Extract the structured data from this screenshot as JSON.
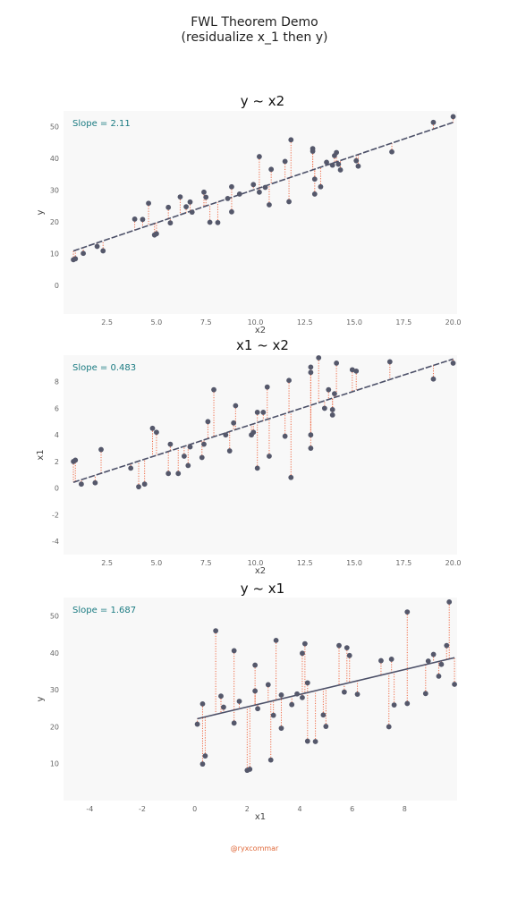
{
  "figure": {
    "title_line1": "FWL Theorem Demo",
    "title_line2": "(residualize x_1 then y)",
    "watermark": "@ryxcommar"
  },
  "colors": {
    "point": "#55586b",
    "fit_line": "#4c5068",
    "residual": "#ef6a45",
    "plot_bg": "#f8f8f8",
    "slope_text": "#1b7b82"
  },
  "chart_data": [
    {
      "type": "scatter",
      "title": "y ~ x2",
      "xlabel": "x2",
      "ylabel": "y",
      "annotation": "Slope = 2.11",
      "xlim": [
        0.3,
        20.2
      ],
      "ylim": [
        -9,
        55
      ],
      "xticks": [
        2.5,
        5.0,
        7.5,
        10.0,
        12.5,
        15.0,
        17.5,
        20.0
      ],
      "xtick_labels": [
        "2.5",
        "5.0",
        "7.5",
        "10.0",
        "12.5",
        "15.0",
        "17.5",
        "20.0"
      ],
      "yticks": [
        0,
        10,
        20,
        30,
        40,
        50
      ],
      "ytick_labels": [
        "0",
        "10",
        "20",
        "30",
        "40",
        "50"
      ],
      "fit": {
        "slope": 2.11,
        "intercept": 9.2
      },
      "grid": false,
      "points": [
        [
          0.8,
          8.1
        ],
        [
          0.9,
          8.4
        ],
        [
          1.3,
          10.1
        ],
        [
          2.0,
          12.3
        ],
        [
          2.3,
          10.9
        ],
        [
          3.9,
          20.9
        ],
        [
          4.3,
          20.8
        ],
        [
          4.6,
          25.9
        ],
        [
          4.9,
          15.9
        ],
        [
          5.0,
          16.3
        ],
        [
          5.6,
          24.6
        ],
        [
          5.7,
          19.7
        ],
        [
          6.2,
          27.9
        ],
        [
          6.5,
          24.8
        ],
        [
          6.7,
          26.3
        ],
        [
          6.8,
          23.1
        ],
        [
          7.4,
          29.4
        ],
        [
          7.5,
          27.8
        ],
        [
          7.7,
          19.9
        ],
        [
          8.1,
          19.8
        ],
        [
          8.6,
          27.4
        ],
        [
          8.8,
          31.1
        ],
        [
          8.8,
          23.2
        ],
        [
          9.2,
          28.8
        ],
        [
          9.9,
          31.8
        ],
        [
          10.2,
          29.4
        ],
        [
          10.2,
          40.6
        ],
        [
          10.5,
          30.9
        ],
        [
          10.7,
          25.4
        ],
        [
          10.8,
          36.6
        ],
        [
          11.5,
          39.1
        ],
        [
          11.7,
          26.4
        ],
        [
          11.8,
          45.9
        ],
        [
          12.9,
          43.1
        ],
        [
          12.9,
          42.3
        ],
        [
          13.0,
          33.5
        ],
        [
          13.0,
          28.8
        ],
        [
          13.3,
          31.1
        ],
        [
          13.6,
          38.8
        ],
        [
          13.9,
          37.9
        ],
        [
          14.0,
          40.9
        ],
        [
          14.1,
          41.9
        ],
        [
          14.2,
          38.2
        ],
        [
          14.3,
          36.4
        ],
        [
          15.1,
          39.3
        ],
        [
          15.2,
          37.6
        ],
        [
          16.9,
          42.1
        ],
        [
          19.0,
          51.4
        ],
        [
          20.0,
          53.2
        ]
      ]
    },
    {
      "type": "scatter",
      "title": "x1 ~ x2",
      "xlabel": "x2",
      "ylabel": "x1",
      "annotation": "Slope = 0.483",
      "xlim": [
        0.3,
        20.2
      ],
      "ylim": [
        -5,
        10
      ],
      "xticks": [
        2.5,
        5.0,
        7.5,
        10.0,
        12.5,
        15.0,
        17.5,
        20.0
      ],
      "xtick_labels": [
        "2.5",
        "5.0",
        "7.5",
        "10.0",
        "12.5",
        "15.0",
        "17.5",
        "20.0"
      ],
      "yticks": [
        -4,
        -2,
        0,
        2,
        4,
        6,
        8
      ],
      "ytick_labels": [
        "-4",
        "-2",
        "0",
        "2",
        "4",
        "6",
        "8"
      ],
      "fit": {
        "slope": 0.483,
        "intercept": 0.05
      },
      "grid": false,
      "points": [
        [
          0.8,
          2.0
        ],
        [
          0.9,
          2.1
        ],
        [
          1.2,
          0.3
        ],
        [
          1.9,
          0.4
        ],
        [
          2.2,
          2.9
        ],
        [
          3.7,
          1.5
        ],
        [
          4.1,
          0.1
        ],
        [
          4.4,
          0.3
        ],
        [
          4.8,
          4.5
        ],
        [
          5.0,
          4.2
        ],
        [
          5.6,
          1.1
        ],
        [
          5.7,
          3.3
        ],
        [
          6.1,
          1.1
        ],
        [
          6.4,
          2.4
        ],
        [
          6.6,
          1.7
        ],
        [
          6.7,
          3.1
        ],
        [
          7.3,
          2.3
        ],
        [
          7.4,
          3.3
        ],
        [
          7.6,
          5.0
        ],
        [
          7.9,
          7.4
        ],
        [
          8.5,
          4.0
        ],
        [
          8.7,
          2.8
        ],
        [
          8.9,
          4.9
        ],
        [
          9.0,
          6.2
        ],
        [
          9.8,
          4.0
        ],
        [
          9.9,
          4.2
        ],
        [
          10.1,
          5.7
        ],
        [
          10.1,
          1.5
        ],
        [
          10.4,
          5.7
        ],
        [
          10.6,
          7.6
        ],
        [
          10.7,
          2.4
        ],
        [
          11.5,
          3.9
        ],
        [
          11.7,
          8.1
        ],
        [
          11.8,
          0.8
        ],
        [
          12.8,
          9.1
        ],
        [
          12.8,
          8.7
        ],
        [
          12.8,
          4.0
        ],
        [
          12.8,
          3.0
        ],
        [
          13.2,
          9.8
        ],
        [
          13.5,
          6.0
        ],
        [
          13.7,
          7.4
        ],
        [
          13.9,
          5.9
        ],
        [
          13.9,
          5.5
        ],
        [
          14.0,
          7.1
        ],
        [
          14.1,
          9.4
        ],
        [
          14.9,
          8.9
        ],
        [
          15.1,
          8.8
        ],
        [
          16.8,
          9.5
        ],
        [
          19.0,
          8.2
        ],
        [
          20.0,
          9.4
        ]
      ]
    },
    {
      "type": "scatter",
      "title": "y ~ x1",
      "xlabel": "x1",
      "ylabel": "y",
      "annotation": "Slope = 1.687",
      "xlim": [
        -5,
        10
      ],
      "ylim": [
        0,
        55
      ],
      "xticks": [
        -4,
        -2,
        0,
        2,
        4,
        6,
        8
      ],
      "xtick_labels": [
        "-4",
        "-2",
        "0",
        "2",
        "4",
        "6",
        "8"
      ],
      "yticks": [
        10,
        20,
        30,
        40,
        50
      ],
      "ytick_labels": [
        "10",
        "20",
        "30",
        "40",
        "50"
      ],
      "fit": {
        "slope": 1.687,
        "intercept": 22.0
      },
      "grid": false,
      "points": [
        [
          0.1,
          20.7
        ],
        [
          0.3,
          26.2
        ],
        [
          0.3,
          9.9
        ],
        [
          0.4,
          12.1
        ],
        [
          0.8,
          46.0
        ],
        [
          1.0,
          28.3
        ],
        [
          1.1,
          25.3
        ],
        [
          1.5,
          40.6
        ],
        [
          1.5,
          21.0
        ],
        [
          1.7,
          26.9
        ],
        [
          2.0,
          8.2
        ],
        [
          2.1,
          8.5
        ],
        [
          2.3,
          29.7
        ],
        [
          2.3,
          36.7
        ],
        [
          2.4,
          24.9
        ],
        [
          2.8,
          31.4
        ],
        [
          2.9,
          11.0
        ],
        [
          3.0,
          23.1
        ],
        [
          3.1,
          43.4
        ],
        [
          3.3,
          28.6
        ],
        [
          3.3,
          19.6
        ],
        [
          3.7,
          26.0
        ],
        [
          3.9,
          28.9
        ],
        [
          4.1,
          27.9
        ],
        [
          4.1,
          39.9
        ],
        [
          4.2,
          42.5
        ],
        [
          4.3,
          16.1
        ],
        [
          4.3,
          31.9
        ],
        [
          4.6,
          16.0
        ],
        [
          4.9,
          23.2
        ],
        [
          5.0,
          20.1
        ],
        [
          5.5,
          42.0
        ],
        [
          5.7,
          29.4
        ],
        [
          5.8,
          41.4
        ],
        [
          5.9,
          39.3
        ],
        [
          6.2,
          28.8
        ],
        [
          7.1,
          37.9
        ],
        [
          7.4,
          20.0
        ],
        [
          7.5,
          38.3
        ],
        [
          7.6,
          25.9
        ],
        [
          8.1,
          51.1
        ],
        [
          8.1,
          26.3
        ],
        [
          8.8,
          29.0
        ],
        [
          8.9,
          37.8
        ],
        [
          9.1,
          39.6
        ],
        [
          9.3,
          33.7
        ],
        [
          9.4,
          36.9
        ],
        [
          9.6,
          42.0
        ],
        [
          9.7,
          53.8
        ],
        [
          9.9,
          31.5
        ]
      ]
    }
  ]
}
